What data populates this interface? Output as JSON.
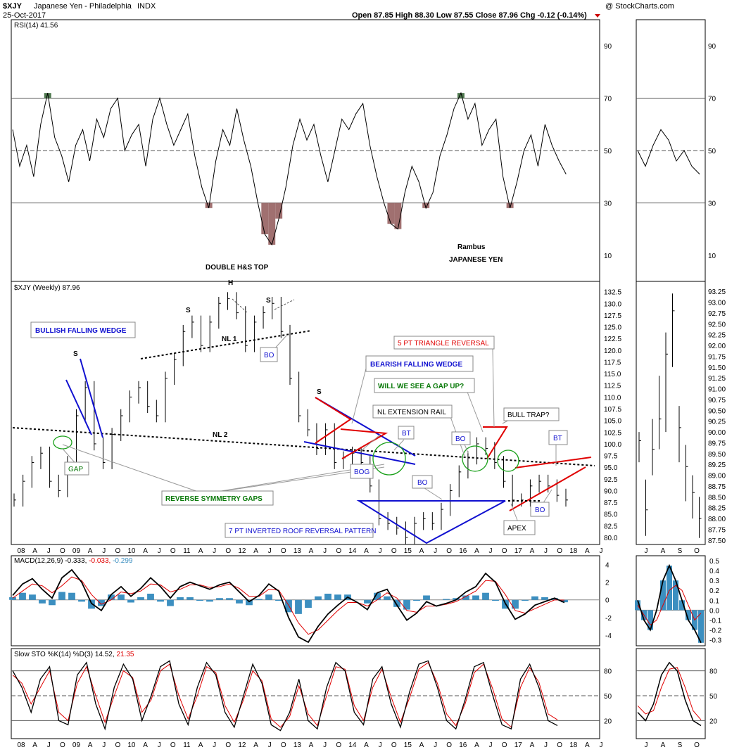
{
  "header": {
    "symbol": "$XJY",
    "name": "Japanese Yen - Philadelphia",
    "exchange": "INDX",
    "date": "25-Oct-2017",
    "watermark": "@ StockCharts.com",
    "quote": "Open 87.85  High 88.30  Low 87.55  Close 87.96  Chg -0.12 (-0.14%)"
  },
  "colors": {
    "red": "#e00000",
    "blue": "#1010d0",
    "green": "#0a7a0a",
    "macd_hist": "#3c8fc0",
    "rsi_low_fill": "#a07070",
    "rsi_high_fill": "#507a50"
  },
  "chart_data": [
    {
      "type": "line",
      "panel": "rsi",
      "title": "RSI(14) 41.56",
      "y_ticks": [
        10,
        30,
        50,
        70,
        90
      ],
      "levels": [
        30,
        50,
        70
      ],
      "series": [
        {
          "values": [
            58,
            44,
            52,
            40,
            60,
            72,
            55,
            48,
            38,
            52,
            58,
            46,
            62,
            55,
            66,
            70,
            50,
            56,
            60,
            44,
            62,
            70,
            60,
            52,
            58,
            64,
            48,
            36,
            28,
            46,
            58,
            52,
            66,
            54,
            44,
            30,
            18,
            14,
            24,
            36,
            52,
            62,
            54,
            60,
            48,
            38,
            50,
            62,
            58,
            64,
            68,
            52,
            40,
            30,
            22,
            20,
            34,
            44,
            38,
            28,
            34,
            48,
            56,
            66,
            72,
            62,
            68,
            52,
            58,
            62,
            40,
            28,
            38,
            50,
            56,
            44,
            60,
            52,
            46,
            41
          ]
        }
      ],
      "inset_values": [
        50,
        44,
        52,
        58,
        54,
        46,
        50,
        44,
        41
      ],
      "inset_ylabel_ticks": [
        10,
        30,
        50,
        70,
        90
      ]
    },
    {
      "type": "bar",
      "panel": "price",
      "title": "$XJY (Weekly) 87.96",
      "y_ticks": [
        80.0,
        82.5,
        85.0,
        87.5,
        90.0,
        92.5,
        95.0,
        97.5,
        100.0,
        102.5,
        105.0,
        107.5,
        110.0,
        112.5,
        115.0,
        117.5,
        120.0,
        122.5,
        125.0,
        127.5,
        130.0,
        132.5
      ],
      "x_ticks": [
        "08",
        "A",
        "J",
        "O",
        "09",
        "A",
        "J",
        "O",
        "10",
        "A",
        "J",
        "O",
        "11",
        "A",
        "J",
        "O",
        "12",
        "A",
        "J",
        "O",
        "13",
        "A",
        "J",
        "O",
        "14",
        "A",
        "J",
        "O",
        "15",
        "A",
        "J",
        "O",
        "16",
        "A",
        "J",
        "O",
        "17",
        "A",
        "J",
        "O",
        "18",
        "A",
        "J"
      ],
      "close": [
        88,
        92,
        96,
        98,
        92,
        90,
        96,
        106,
        112,
        100,
        96,
        102,
        106,
        110,
        112,
        108,
        106,
        114,
        118,
        124,
        126,
        121,
        126,
        130,
        131,
        128,
        121,
        126,
        128,
        130,
        124,
        114,
        106,
        103,
        99,
        103,
        96,
        97,
        98,
        96,
        91,
        84,
        83,
        82,
        80,
        83,
        84,
        83,
        86,
        90,
        94,
        97,
        100,
        99,
        96,
        92,
        88,
        88,
        91,
        92,
        91,
        89,
        88
      ],
      "inset_y_ticks": [
        87.5,
        87.75,
        88.0,
        88.25,
        88.5,
        88.75,
        89.0,
        89.25,
        89.5,
        89.75,
        90.0,
        90.25,
        90.5,
        90.75,
        91.0,
        91.25,
        91.5,
        91.75,
        92.0,
        92.25,
        92.5,
        92.75,
        93.0,
        93.25
      ],
      "inset_x_ticks": [
        "J",
        "A",
        "S",
        "O"
      ]
    },
    {
      "type": "bar",
      "panel": "macd",
      "title": "MACD(12,26,9) -0.333, -0.033, -0.299",
      "title_parts": [
        "MACD(12,26,9) -0.333,",
        "-0.033,",
        "-0.299"
      ],
      "y_ticks": [
        -4,
        -2,
        0,
        2,
        4
      ],
      "inset_y_ticks": [
        -0.3,
        -0.2,
        -0.1,
        0.0,
        0.1,
        0.2,
        0.3,
        0.4,
        0.5
      ],
      "macd": [
        0.5,
        1.8,
        2.4,
        1.2,
        0.2,
        2.5,
        3.4,
        2.0,
        -0.4,
        -1.2,
        0.6,
        1.5,
        0.4,
        1.3,
        2.5,
        1.5,
        0.2,
        1.5,
        2.0,
        1.6,
        1.2,
        1.7,
        2.0,
        0.9,
        -0.2,
        0.5,
        1.8,
        1.0,
        -2.0,
        -4.2,
        -4.8,
        -3.0,
        -1.6,
        -0.6,
        0.3,
        -0.3,
        -1.1,
        0.8,
        1.2,
        -0.6,
        -2.3,
        -1.5,
        -0.2,
        -0.7,
        -0.4,
        0.0,
        0.9,
        1.5,
        3.0,
        2.0,
        -0.4,
        -2.2,
        -1.6,
        -0.6,
        -0.2,
        0.2,
        -0.3
      ],
      "signal": [
        0.2,
        1.0,
        1.8,
        1.6,
        0.8,
        1.6,
        2.6,
        2.2,
        0.6,
        -0.5,
        0.0,
        0.9,
        0.7,
        1.0,
        1.8,
        1.7,
        0.9,
        1.2,
        1.7,
        1.7,
        1.4,
        1.5,
        1.8,
        1.3,
        0.4,
        0.4,
        1.2,
        1.1,
        -0.6,
        -2.6,
        -3.9,
        -3.4,
        -2.3,
        -1.2,
        -0.3,
        -0.3,
        -0.7,
        0.0,
        0.8,
        0.2,
        -1.2,
        -1.4,
        -0.7,
        -0.7,
        -0.5,
        -0.2,
        0.4,
        1.0,
        2.2,
        2.1,
        0.6,
        -1.2,
        -1.5,
        -1.0,
        -0.5,
        0.0,
        -0.03
      ],
      "inset_macd": [
        0.1,
        -0.1,
        -0.2,
        0.0,
        0.3,
        0.45,
        0.3,
        0.1,
        -0.1,
        -0.2,
        -0.33
      ],
      "inset_signal": [
        0.05,
        -0.05,
        -0.15,
        -0.1,
        0.05,
        0.2,
        0.25,
        0.2,
        0.05,
        -0.1,
        -0.03
      ]
    },
    {
      "type": "line",
      "panel": "stochastic",
      "title": "Slow STO %K(14) %D(3) 14.52, 21.35",
      "title_parts": [
        "Slow STO %K(14) %D(3) 14.52,",
        "21.35"
      ],
      "y_ticks": [
        20,
        50,
        80
      ],
      "k": [
        80,
        60,
        30,
        70,
        85,
        20,
        15,
        75,
        90,
        40,
        10,
        60,
        88,
        70,
        20,
        50,
        85,
        92,
        40,
        15,
        60,
        90,
        75,
        30,
        12,
        50,
        88,
        65,
        15,
        8,
        30,
        70,
        20,
        10,
        60,
        90,
        80,
        30,
        15,
        70,
        85,
        40,
        12,
        55,
        88,
        92,
        60,
        20,
        10,
        45,
        85,
        90,
        50,
        15,
        10,
        70,
        88,
        60,
        20,
        14
      ],
      "d": [
        75,
        65,
        40,
        60,
        80,
        30,
        20,
        65,
        85,
        50,
        18,
        50,
        80,
        72,
        30,
        45,
        80,
        88,
        50,
        22,
        50,
        85,
        78,
        38,
        18,
        45,
        80,
        68,
        22,
        12,
        25,
        62,
        28,
        14,
        50,
        85,
        82,
        38,
        20,
        60,
        82,
        48,
        18,
        48,
        82,
        90,
        65,
        28,
        14,
        40,
        78,
        88,
        58,
        22,
        12,
        60,
        84,
        66,
        28,
        21
      ],
      "inset_k": [
        30,
        20,
        40,
        75,
        90,
        80,
        45,
        20,
        14
      ],
      "inset_d": [
        38,
        28,
        32,
        60,
        82,
        84,
        60,
        32,
        21
      ],
      "inset_x_ticks": [
        "J",
        "A",
        "S",
        "O"
      ]
    }
  ],
  "annotations": {
    "double_hs_top": "DOUBLE H&S TOP",
    "rambus": "Rambus",
    "japanese_yen": "JAPANESE YEN",
    "h": "H",
    "s_left": "S",
    "s_right": "S",
    "s_wedge": "S",
    "s_lower": "S",
    "nl1": "NL 1",
    "nl2": "NL 2",
    "bo1": "BO",
    "bullish_falling_wedge": "BULLISH FALLING WEDGE",
    "five_pt_triangle": "5 PT TRIANGLE REVERSAL",
    "bearish_falling_wedge": "BEARISH FALLING WEDGE",
    "gap_up": "WILL WE SEE A GAP UP?",
    "nl_extension_rail": "NL EXTENSION RAIL",
    "bull_trap": "BULL TRAP?",
    "bt1": "BT",
    "bt2": "BT",
    "bo2": "BO",
    "bo3": "BO",
    "bo4": "BO",
    "bog": "BOG",
    "gap": "GAP",
    "reverse_symmetry_gaps": "REVERSE SYMMETRY GAPS",
    "seven_pt_roof": "7 PT INVERTED ROOF REVERSAL PATTERN",
    "apex": "APEX"
  }
}
